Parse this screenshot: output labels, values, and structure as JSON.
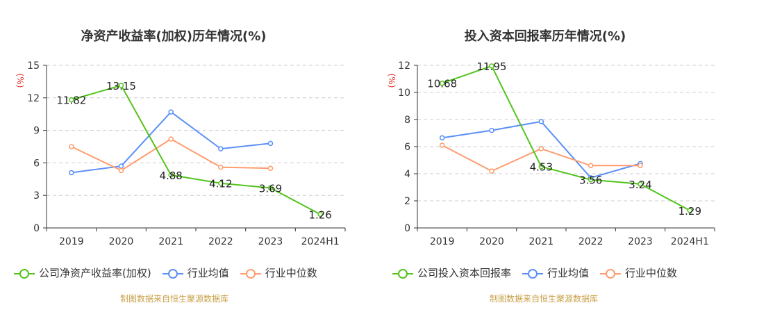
{
  "colors": {
    "company": "#52c41a",
    "industry_avg": "#5b8ff9",
    "industry_median": "#ff9c6e",
    "unit_label": "#e8382f",
    "source": "#c8a047"
  },
  "chart_data": [
    {
      "type": "line",
      "title": "净资产收益率(加权)历年情况(%)",
      "ylabel": "(%)",
      "categories": [
        "2019",
        "2020",
        "2021",
        "2022",
        "2023",
        "2024H1"
      ],
      "ylim": [
        0,
        15
      ],
      "yticks": [
        0,
        3,
        6,
        9,
        12,
        15
      ],
      "grid": true,
      "series": [
        {
          "name": "公司净资产收益率(加权)",
          "color_key": "company",
          "values": [
            11.82,
            13.15,
            4.88,
            4.12,
            3.69,
            1.26
          ],
          "labels": [
            "11.82",
            "13.15",
            "4.88",
            "4.12",
            "3.69",
            "1.26"
          ]
        },
        {
          "name": "行业均值",
          "color_key": "industry_avg",
          "values": [
            5.1,
            5.7,
            10.7,
            7.3,
            7.8,
            null
          ]
        },
        {
          "name": "行业中位数",
          "color_key": "industry_median",
          "values": [
            7.5,
            5.3,
            8.2,
            5.6,
            5.5,
            null
          ]
        }
      ],
      "source": "制图数据来自恒生聚源数据库"
    },
    {
      "type": "line",
      "title": "投入资本回报率历年情况(%)",
      "ylabel": "(%)",
      "categories": [
        "2019",
        "2020",
        "2021",
        "2022",
        "2023",
        "2024H1"
      ],
      "ylim": [
        0,
        12
      ],
      "yticks": [
        0,
        2,
        4,
        6,
        8,
        10,
        12
      ],
      "grid": true,
      "series": [
        {
          "name": "公司投入资本回报率",
          "color_key": "company",
          "values": [
            10.68,
            11.95,
            4.53,
            3.56,
            3.24,
            1.29
          ],
          "labels": [
            "10.68",
            "11.95",
            "4.53",
            "3.56",
            "3.24",
            "1.29"
          ]
        },
        {
          "name": "行业均值",
          "color_key": "industry_avg",
          "values": [
            6.65,
            7.2,
            7.85,
            3.7,
            4.75,
            null
          ]
        },
        {
          "name": "行业中位数",
          "color_key": "industry_median",
          "values": [
            6.1,
            4.2,
            5.85,
            4.6,
            4.6,
            null
          ]
        }
      ],
      "source": "制图数据来自恒生聚源数据库"
    }
  ]
}
